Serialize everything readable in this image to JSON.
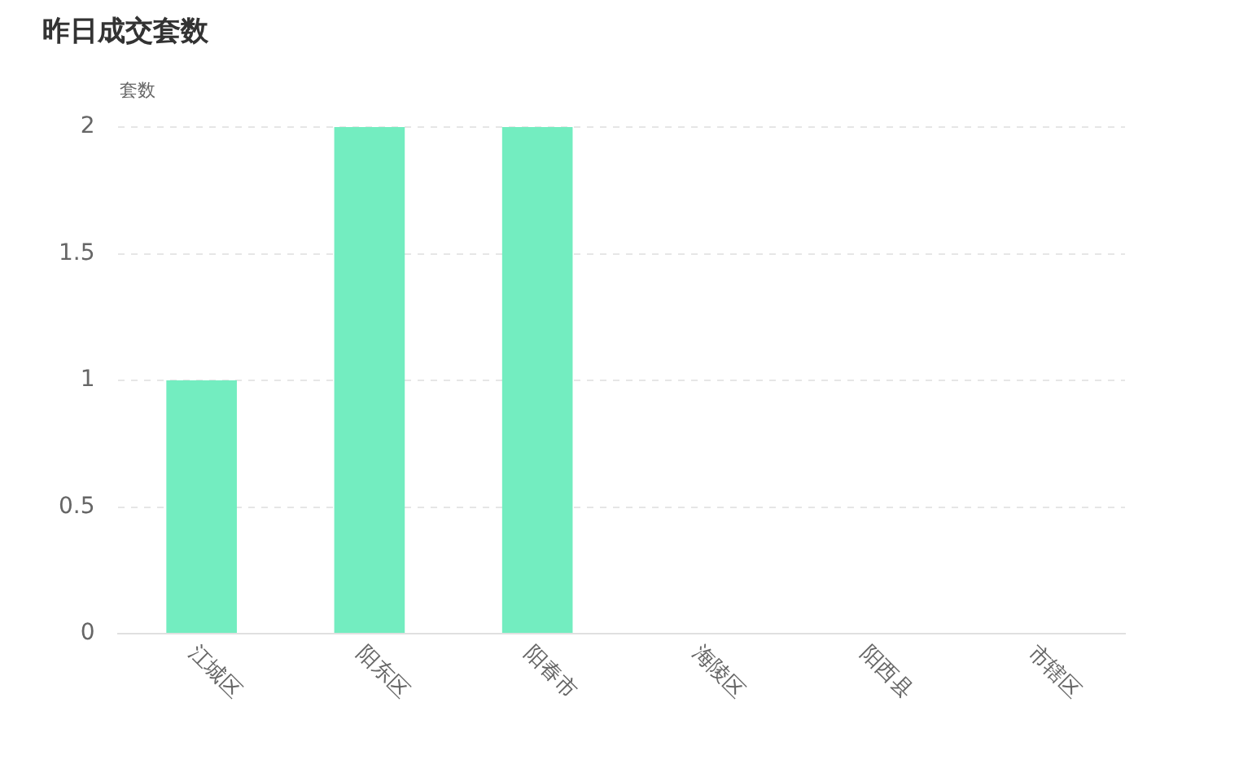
{
  "chart_data": {
    "type": "bar",
    "title": "昨日成交套数",
    "ylabel": "套数",
    "categories": [
      "江城区",
      "阳东区",
      "阳春市",
      "海陵区",
      "阳西县",
      "市辖区"
    ],
    "values": [
      1,
      2,
      2,
      0,
      0,
      0
    ],
    "color": "#73edc0",
    "ylim": [
      0,
      2
    ],
    "yticks": [
      0,
      0.5,
      1,
      1.5,
      2
    ],
    "grid": "y"
  }
}
